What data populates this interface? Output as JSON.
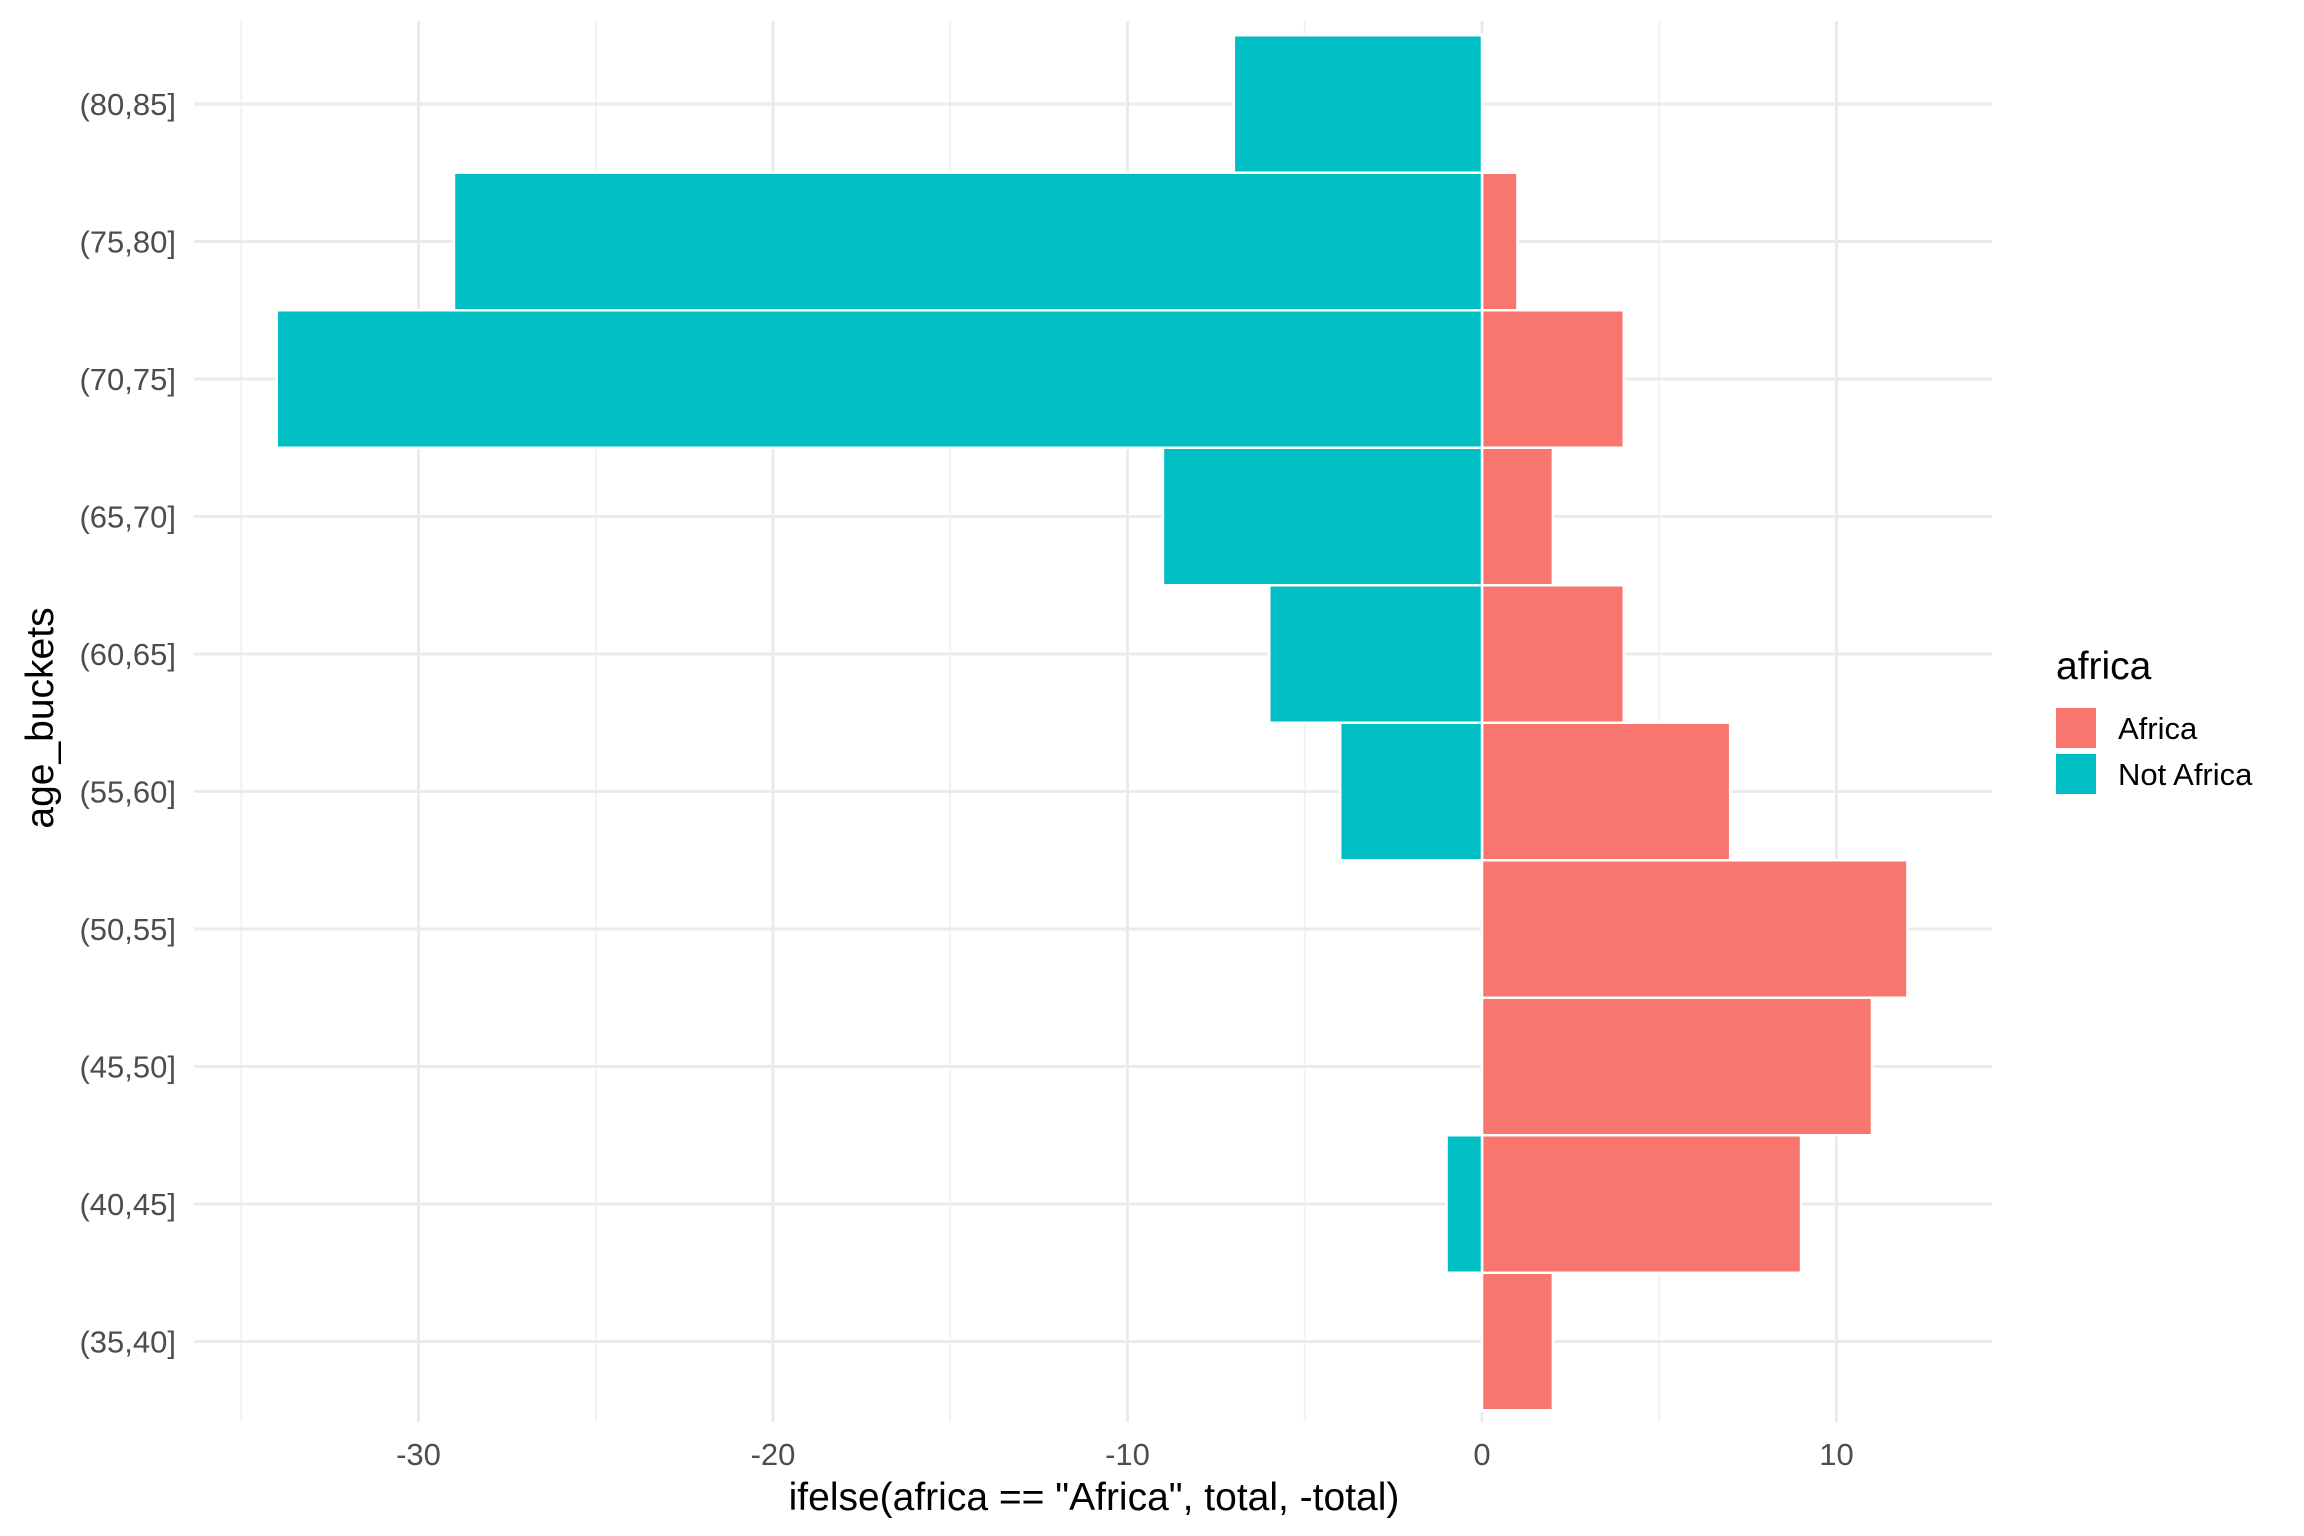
{
  "chart_data": {
    "type": "bar",
    "orientation": "horizontal",
    "layout": "population pyramid (diverging)",
    "categories": [
      "(35,40]",
      "(40,45]",
      "(45,50]",
      "(50,55]",
      "(55,60]",
      "(60,65]",
      "(65,70]",
      "(70,75]",
      "(75,80]",
      "(80,85]"
    ],
    "series": [
      {
        "name": "Africa",
        "values": [
          2,
          9,
          11,
          12,
          7,
          4,
          2,
          4,
          1,
          0
        ]
      },
      {
        "name": "Not Africa",
        "values": [
          0,
          -1,
          0,
          0,
          -4,
          -6,
          -9,
          -34,
          -29,
          -7
        ]
      }
    ],
    "xlabel": "ifelse(africa == \"Africa\", total, -total)",
    "ylabel": "age_buckets",
    "xlim": [
      -35,
      14.3
    ],
    "x_ticks": [
      -30,
      -20,
      -10,
      0,
      10
    ],
    "x_tick_labels": [
      "-30",
      "-20",
      "-10",
      "0",
      "10"
    ],
    "grid": true,
    "legend": {
      "title": "africa",
      "position": "right",
      "entries": [
        "Africa",
        "Not Africa"
      ]
    },
    "colors": {
      "Africa": "#F8766D",
      "Not Africa": "#00BFC4",
      "grid_major": "#EBEBEB",
      "grid_minor": "#F2F2F2",
      "bar_outline": "#FFFFFF"
    }
  }
}
